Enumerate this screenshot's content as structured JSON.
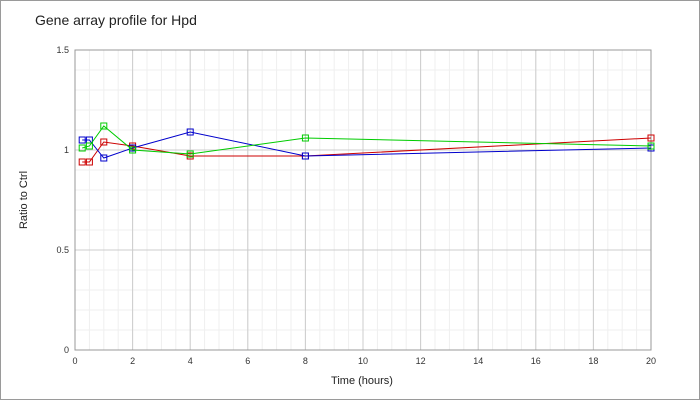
{
  "chart_data": {
    "type": "line",
    "title": "Gene array profile for Hpd",
    "xlabel": "Time (hours)",
    "ylabel": "Ratio to Ctrl",
    "xlim": [
      0,
      20
    ],
    "ylim": [
      0,
      1.5
    ],
    "x_ticks": [
      0,
      2,
      4,
      6,
      8,
      10,
      12,
      14,
      16,
      18,
      20
    ],
    "y_ticks": [
      0,
      0.5,
      1,
      1.5
    ],
    "grid": true,
    "minor_grid": true,
    "legend": false,
    "series": [
      {
        "color": "#cc0000",
        "x": [
          0.25,
          0.5,
          1,
          2,
          4,
          8,
          20
        ],
        "y": [
          0.94,
          0.94,
          1.04,
          1.02,
          0.97,
          0.97,
          1.06
        ]
      },
      {
        "color": "#0000cc",
        "x": [
          0.25,
          0.5,
          1,
          2,
          4,
          8,
          20
        ],
        "y": [
          1.05,
          1.05,
          0.96,
          1.01,
          1.09,
          0.97,
          1.01
        ]
      },
      {
        "color": "#00cc00",
        "x": [
          0.25,
          0.5,
          1,
          2,
          4,
          8,
          20
        ],
        "y": [
          1.01,
          1.02,
          1.12,
          1.0,
          0.98,
          1.06,
          1.02
        ]
      }
    ]
  }
}
